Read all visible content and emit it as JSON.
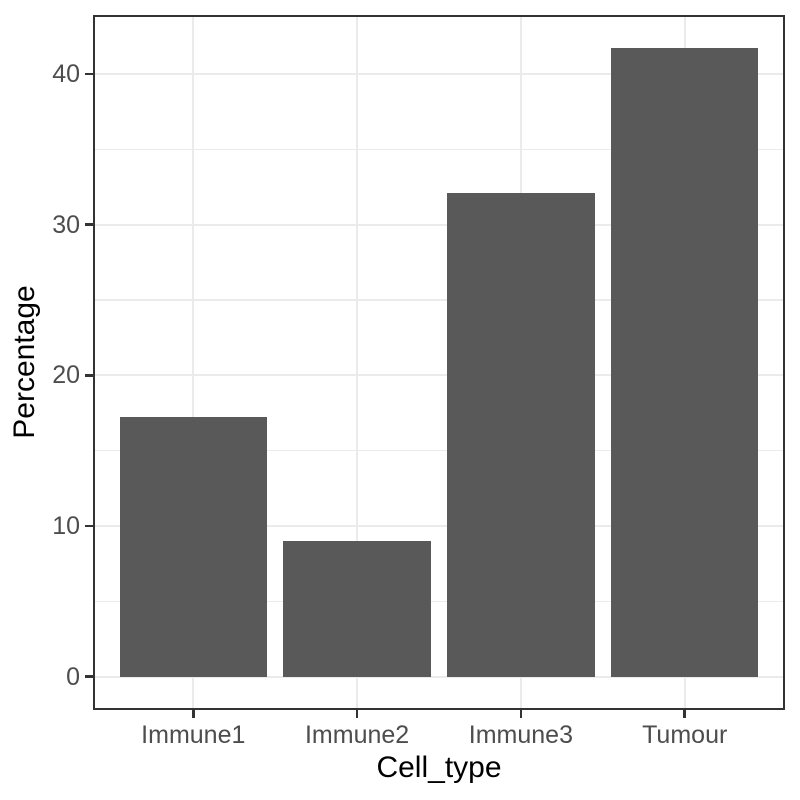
{
  "chart_data": {
    "type": "bar",
    "categories": [
      "Immune1",
      "Immune2",
      "Immune3",
      "Tumour"
    ],
    "values": [
      17.2,
      9.0,
      32.1,
      41.7
    ],
    "title": "",
    "xlabel": "Cell_type",
    "ylabel": "Percentage",
    "ylim": [
      -2.09,
      43.79
    ],
    "yticks": [
      0,
      10,
      20,
      30,
      40
    ],
    "yminor": [
      5,
      15,
      25,
      35
    ],
    "grid": true,
    "legend": "none",
    "bar_width_fraction": 0.9,
    "colors": {
      "bar_fill": "#595959",
      "panel_border": "#333333",
      "gridline": "#EBEBEB",
      "tick_mark": "#333333",
      "tick_label": "#4D4D4D",
      "axis_title": "#000000",
      "background": "#FFFFFF"
    }
  }
}
